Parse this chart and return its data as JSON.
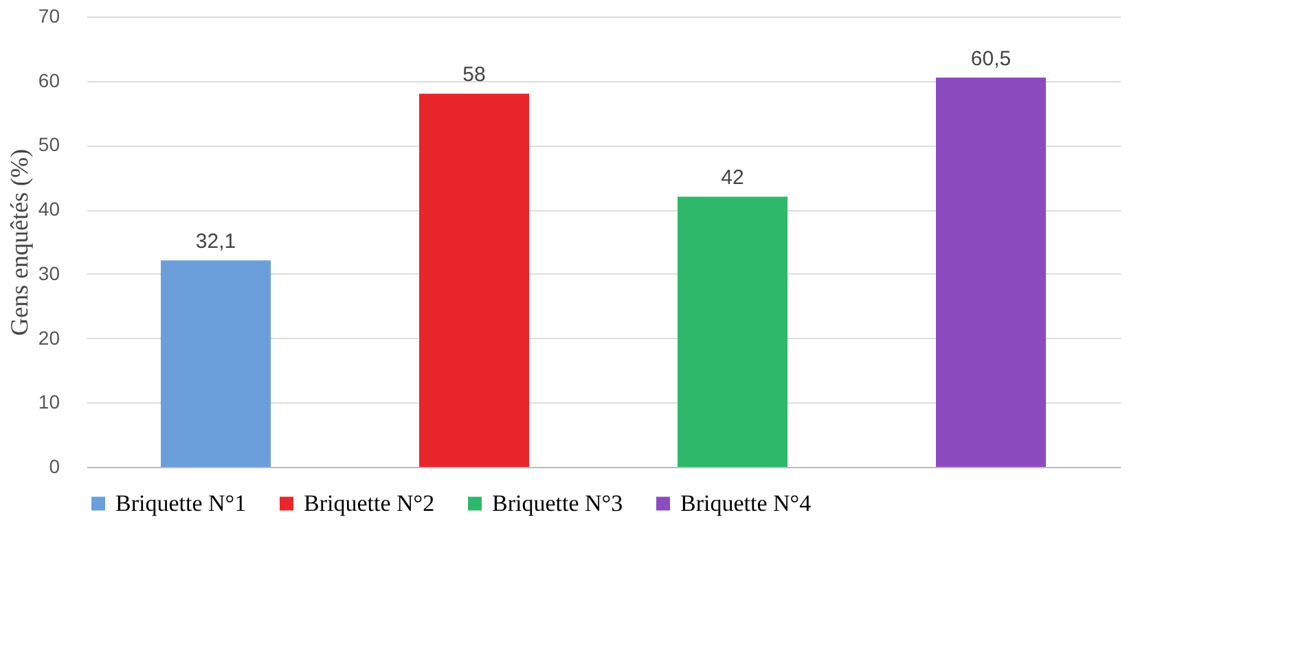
{
  "chart_data": {
    "type": "bar",
    "ylabel": "Gens enquêtés (%)",
    "categories": [
      null,
      null,
      null,
      null
    ],
    "series": [
      {
        "name": "Briquette N°1",
        "color": "#6a9fdc",
        "values": [
          32.1,
          null,
          null,
          null
        ],
        "value_labels": [
          "32,1",
          null,
          null,
          null
        ]
      },
      {
        "name": "Briquette N°2",
        "color": "#e8262b",
        "values": [
          null,
          58,
          null,
          null
        ],
        "value_labels": [
          null,
          "58",
          null,
          null
        ]
      },
      {
        "name": "Briquette N°3",
        "color": "#2db86a",
        "values": [
          null,
          null,
          42,
          null
        ],
        "value_labels": [
          null,
          null,
          "42",
          null
        ]
      },
      {
        "name": "Briquette N°4",
        "color": "#8b4cbf",
        "values": [
          null,
          null,
          null,
          60.5
        ],
        "value_labels": [
          null,
          null,
          null,
          "60,5"
        ]
      }
    ],
    "ylim": [
      0,
      70
    ],
    "yticks": [
      0,
      10,
      20,
      30,
      40,
      50,
      60,
      70
    ],
    "grid": "y",
    "legend": "bottom",
    "tick_labels": "y"
  }
}
